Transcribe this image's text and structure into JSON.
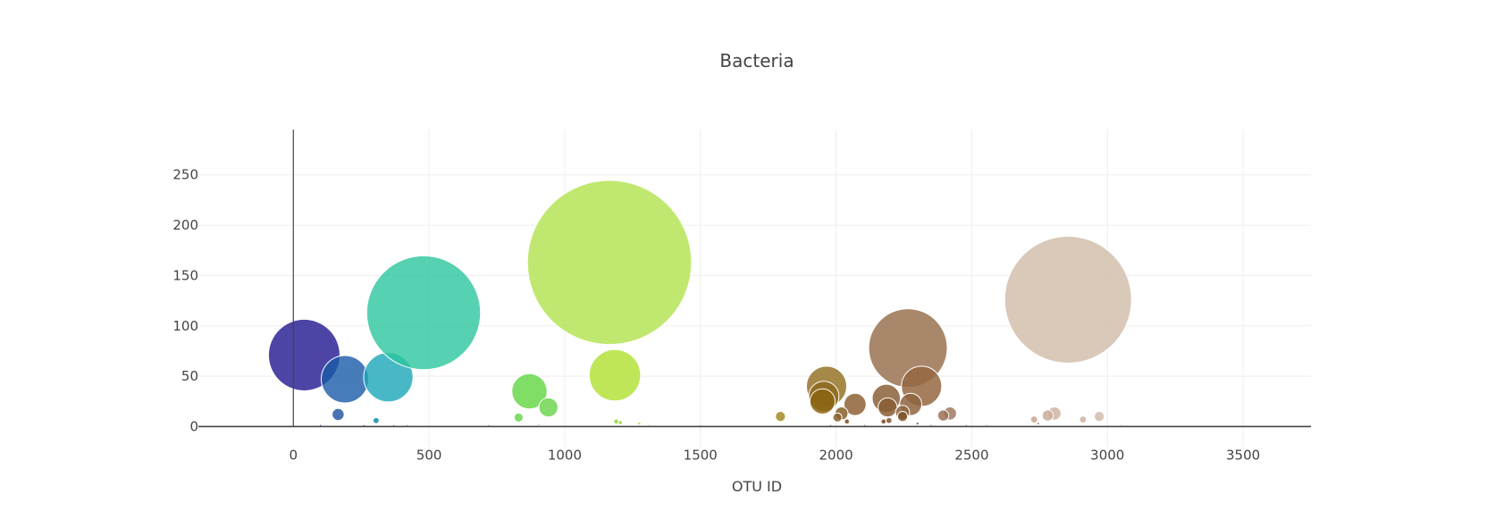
{
  "chart_data": {
    "type": "scatter",
    "variant": "bubble",
    "title": "Bacteria",
    "xlabel": "OTU ID",
    "ylabel": "",
    "xlim": [
      -350,
      3750
    ],
    "ylim": [
      -20,
      295
    ],
    "xticks": [
      0,
      500,
      1000,
      1500,
      2000,
      2500,
      3000,
      3500
    ],
    "yticks": [
      0,
      50,
      100,
      150,
      200,
      250
    ],
    "grid": true,
    "legend": "none",
    "bubbles": [
      {
        "x": 40,
        "y": 71,
        "size": 71,
        "color": "#2e2596",
        "opacity": 0.85
      },
      {
        "x": 190,
        "y": 47,
        "size": 47,
        "color": "#1a5aa8",
        "opacity": 0.8
      },
      {
        "x": 165,
        "y": 12,
        "size": 12,
        "color": "#2a5ba6",
        "opacity": 0.85
      },
      {
        "x": 350,
        "y": 49,
        "size": 49,
        "color": "#1aa6b8",
        "opacity": 0.8
      },
      {
        "x": 305,
        "y": 6,
        "size": 6,
        "color": "#1c8fb3",
        "opacity": 0.9
      },
      {
        "x": 480,
        "y": 113,
        "size": 113,
        "color": "#2cc69e",
        "opacity": 0.8
      },
      {
        "x": 870,
        "y": 35,
        "size": 35,
        "color": "#6ad84c",
        "opacity": 0.85
      },
      {
        "x": 940,
        "y": 19,
        "size": 19,
        "color": "#70d650",
        "opacity": 0.85
      },
      {
        "x": 830,
        "y": 9,
        "size": 9,
        "color": "#6ad84c",
        "opacity": 0.85
      },
      {
        "x": 1165,
        "y": 163,
        "size": 163,
        "color": "#b5e457",
        "opacity": 0.85
      },
      {
        "x": 1185,
        "y": 51,
        "size": 51,
        "color": "#b4e23c",
        "opacity": 0.85
      },
      {
        "x": 1190,
        "y": 5,
        "size": 5,
        "color": "#9bd83a",
        "opacity": 0.9
      },
      {
        "x": 1205,
        "y": 4,
        "size": 4,
        "color": "#9bd83a",
        "opacity": 0.9
      },
      {
        "x": 1275,
        "y": 3,
        "size": 3,
        "color": "#c8d23a",
        "opacity": 0.9
      },
      {
        "x": 1795,
        "y": 10,
        "size": 10,
        "color": "#a48a24",
        "opacity": 0.85
      },
      {
        "x": 1965,
        "y": 40,
        "size": 40,
        "color": "#977428",
        "opacity": 0.85
      },
      {
        "x": 1955,
        "y": 30,
        "size": 30,
        "color": "#8e6a1e",
        "opacity": 0.85
      },
      {
        "x": 1950,
        "y": 25,
        "size": 25,
        "color": "#8a6410",
        "opacity": 0.85
      },
      {
        "x": 2070,
        "y": 22,
        "size": 22,
        "color": "#8d6236",
        "opacity": 0.85
      },
      {
        "x": 2020,
        "y": 13,
        "size": 13,
        "color": "#86602c",
        "opacity": 0.85
      },
      {
        "x": 2005,
        "y": 9,
        "size": 9,
        "color": "#86602c",
        "opacity": 0.85
      },
      {
        "x": 2040,
        "y": 5,
        "size": 5,
        "color": "#7c5526",
        "opacity": 0.9
      },
      {
        "x": 2265,
        "y": 78,
        "size": 78,
        "color": "#9a7250",
        "opacity": 0.85
      },
      {
        "x": 2315,
        "y": 40,
        "size": 40,
        "color": "#946741",
        "opacity": 0.85
      },
      {
        "x": 2185,
        "y": 28,
        "size": 28,
        "color": "#8c6038",
        "opacity": 0.85
      },
      {
        "x": 2275,
        "y": 22,
        "size": 22,
        "color": "#8e6440",
        "opacity": 0.85
      },
      {
        "x": 2190,
        "y": 19,
        "size": 19,
        "color": "#8a5e36",
        "opacity": 0.85
      },
      {
        "x": 2245,
        "y": 14,
        "size": 14,
        "color": "#8e6440",
        "opacity": 0.85
      },
      {
        "x": 2245,
        "y": 10,
        "size": 10,
        "color": "#7c5228",
        "opacity": 0.85
      },
      {
        "x": 2175,
        "y": 5,
        "size": 5,
        "color": "#7c5228",
        "opacity": 0.9
      },
      {
        "x": 2195,
        "y": 6,
        "size": 6,
        "color": "#8a5e36",
        "opacity": 0.9
      },
      {
        "x": 2420,
        "y": 13,
        "size": 13,
        "color": "#a07a60",
        "opacity": 0.85
      },
      {
        "x": 2395,
        "y": 11,
        "size": 11,
        "color": "#9a7258",
        "opacity": 0.85
      },
      {
        "x": 2855,
        "y": 126,
        "size": 126,
        "color": "#d2bfad",
        "opacity": 0.85
      },
      {
        "x": 2805,
        "y": 13,
        "size": 13,
        "color": "#cfb3a3",
        "opacity": 0.85
      },
      {
        "x": 2780,
        "y": 11,
        "size": 11,
        "color": "#c9ad9c",
        "opacity": 0.85
      },
      {
        "x": 2730,
        "y": 7,
        "size": 7,
        "color": "#c4a493",
        "opacity": 0.85
      },
      {
        "x": 2970,
        "y": 10,
        "size": 10,
        "color": "#d2bcae",
        "opacity": 0.85
      },
      {
        "x": 2910,
        "y": 7,
        "size": 7,
        "color": "#cbb3a4",
        "opacity": 0.85
      },
      {
        "x": 2745,
        "y": 3,
        "size": 3,
        "color": "#b89888",
        "opacity": 0.9
      },
      {
        "x": 100,
        "y": 1,
        "size": 1,
        "color": "#2e2596",
        "opacity": 0.9
      },
      {
        "x": 260,
        "y": 1,
        "size": 1,
        "color": "#1a7ab0",
        "opacity": 0.9
      },
      {
        "x": 370,
        "y": 1,
        "size": 1,
        "color": "#1aa6b8",
        "opacity": 0.9
      },
      {
        "x": 420,
        "y": 1,
        "size": 1,
        "color": "#2cc69e",
        "opacity": 0.9
      },
      {
        "x": 720,
        "y": 1,
        "size": 1,
        "color": "#4cd07a",
        "opacity": 0.9
      },
      {
        "x": 905,
        "y": 2,
        "size": 2,
        "color": "#6ad84c",
        "opacity": 0.9
      },
      {
        "x": 1310,
        "y": 1,
        "size": 1,
        "color": "#c8d23a",
        "opacity": 0.9
      },
      {
        "x": 1500,
        "y": 1,
        "size": 1,
        "color": "#c0b838",
        "opacity": 0.9
      },
      {
        "x": 1980,
        "y": 1,
        "size": 1,
        "color": "#977428",
        "opacity": 0.9
      },
      {
        "x": 2105,
        "y": 1,
        "size": 1,
        "color": "#8d6236",
        "opacity": 0.9
      },
      {
        "x": 2300,
        "y": 3,
        "size": 3,
        "color": "#8e6440",
        "opacity": 0.9
      },
      {
        "x": 2350,
        "y": 1,
        "size": 1,
        "color": "#946741",
        "opacity": 0.9
      },
      {
        "x": 2480,
        "y": 1,
        "size": 1,
        "color": "#a07a60",
        "opacity": 0.9
      },
      {
        "x": 2555,
        "y": 1,
        "size": 1,
        "color": "#b08a70",
        "opacity": 0.9
      },
      {
        "x": 3050,
        "y": 1,
        "size": 1,
        "color": "#d2bcae",
        "opacity": 0.9
      }
    ]
  }
}
